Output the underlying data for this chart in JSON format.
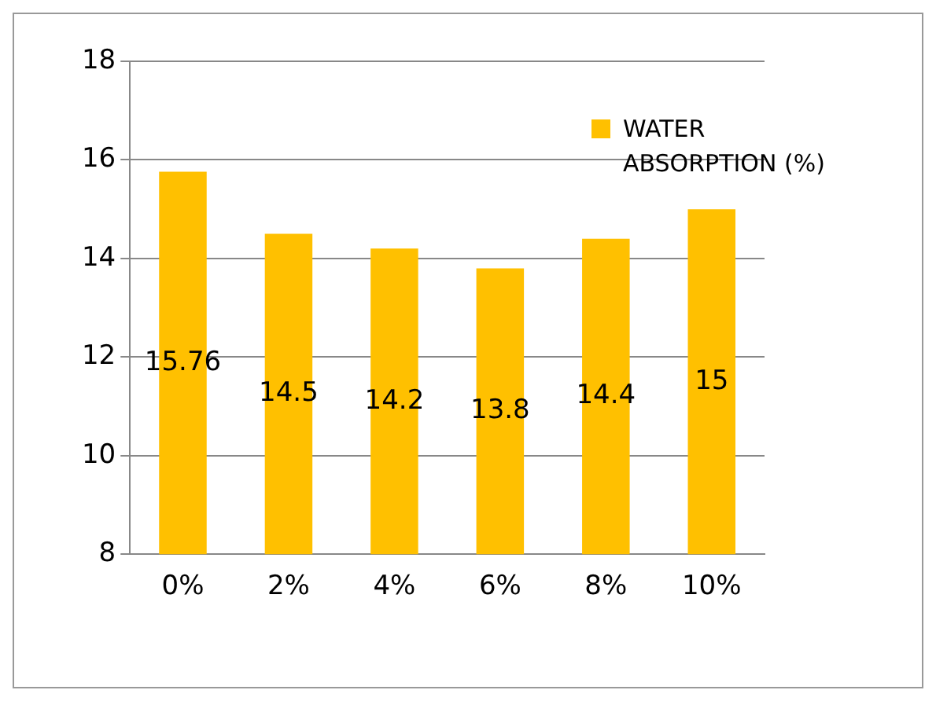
{
  "chart_data": {
    "type": "bar",
    "categories": [
      "0%",
      "2%",
      "4%",
      "6%",
      "8%",
      "10%"
    ],
    "series": [
      {
        "name": "WATER ABSORPTION (%)",
        "color": "#ffc000",
        "values": [
          15.76,
          14.5,
          14.2,
          13.8,
          14.4,
          15
        ]
      }
    ],
    "ylim": [
      8,
      18
    ],
    "yticks": [
      8,
      10,
      12,
      14,
      16,
      18
    ],
    "grid": "y",
    "legend": "top right",
    "data_labels": true
  }
}
